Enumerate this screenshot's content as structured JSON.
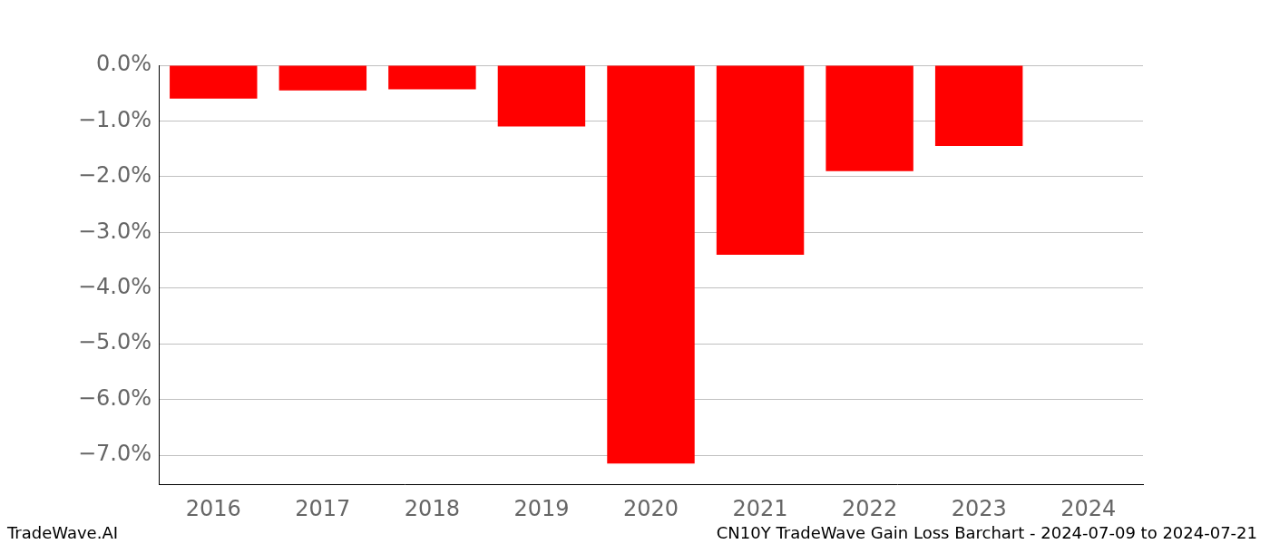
{
  "chart_data": {
    "type": "bar",
    "footer": {
      "left": "TradeWave.AI",
      "right": "CN10Y TradeWave Gain Loss Barchart - 2024-07-09 to 2024-07-21"
    },
    "categories": [
      "2016",
      "2017",
      "2018",
      "2019",
      "2020",
      "2021",
      "2022",
      "2023",
      "2024"
    ],
    "values": [
      -0.6,
      -0.45,
      -0.43,
      -1.1,
      -7.15,
      -3.4,
      -1.9,
      -1.45,
      null
    ],
    "color": "#ff0000",
    "ylim": [
      -7.52,
      0
    ],
    "yticks": [
      {
        "value": 0,
        "label": "0.0%"
      },
      {
        "value": -1,
        "label": "−1.0%"
      },
      {
        "value": -2,
        "label": "−2.0%"
      },
      {
        "value": -3,
        "label": "−3.0%"
      },
      {
        "value": -4,
        "label": "−4.0%"
      },
      {
        "value": -5,
        "label": "−5.0%"
      },
      {
        "value": -6,
        "label": "−6.0%"
      },
      {
        "value": -7,
        "label": "−7.0%"
      }
    ],
    "grid": true
  }
}
